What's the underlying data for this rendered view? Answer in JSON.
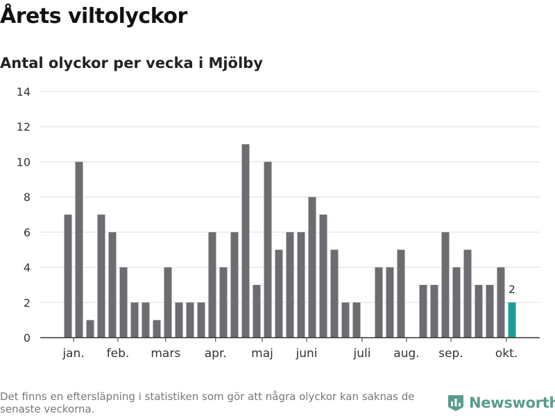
{
  "title": "Årets viltolyckor",
  "subtitle": "Antal olyckor per vecka i Mjölby",
  "footnote": "Det finns en eftersläpning i statistiken som gör att några olyckor kan saknas de senaste veckorna.",
  "brand": {
    "name": "Newsworthy",
    "icon": "newsworthy-logo-icon"
  },
  "colors": {
    "bar": "#6d6c70",
    "highlight": "#1a9e97",
    "grid": "#dddddd",
    "axis": "#333333",
    "brand": "#5a9c8c"
  },
  "chart_data": {
    "type": "bar",
    "title": "Antal olyckor per vecka i Mjölby",
    "xlabel": "",
    "ylabel": "",
    "ylim": [
      0,
      14
    ],
    "yticks": [
      0,
      2,
      4,
      6,
      8,
      10,
      12,
      14
    ],
    "weeks": [
      1,
      2,
      3,
      4,
      5,
      6,
      7,
      8,
      9,
      10,
      11,
      12,
      13,
      14,
      15,
      16,
      17,
      18,
      19,
      20,
      21,
      22,
      23,
      24,
      25,
      26,
      27,
      28,
      29,
      30,
      31,
      32,
      33,
      34,
      35,
      36,
      37,
      38,
      39,
      40,
      41
    ],
    "values": [
      7,
      10,
      1,
      7,
      6,
      4,
      2,
      2,
      1,
      4,
      2,
      2,
      2,
      6,
      4,
      6,
      11,
      3,
      10,
      5,
      6,
      6,
      8,
      7,
      5,
      2,
      2,
      0,
      4,
      4,
      5,
      0,
      3,
      3,
      6,
      4,
      5,
      3,
      3,
      4,
      2
    ],
    "highlight_index": 40,
    "highlight_label": "2",
    "month_labels": [
      {
        "label": "jan.",
        "week": 1.5
      },
      {
        "label": "feb.",
        "week": 5.5
      },
      {
        "label": "mars",
        "week": 9.8
      },
      {
        "label": "apr.",
        "week": 14.3
      },
      {
        "label": "maj",
        "week": 18.5
      },
      {
        "label": "juni",
        "week": 22.5
      },
      {
        "label": "juli",
        "week": 27.5
      },
      {
        "label": "aug.",
        "week": 31.5
      },
      {
        "label": "sep.",
        "week": 35.5
      },
      {
        "label": "okt.",
        "week": 40.5
      }
    ]
  }
}
